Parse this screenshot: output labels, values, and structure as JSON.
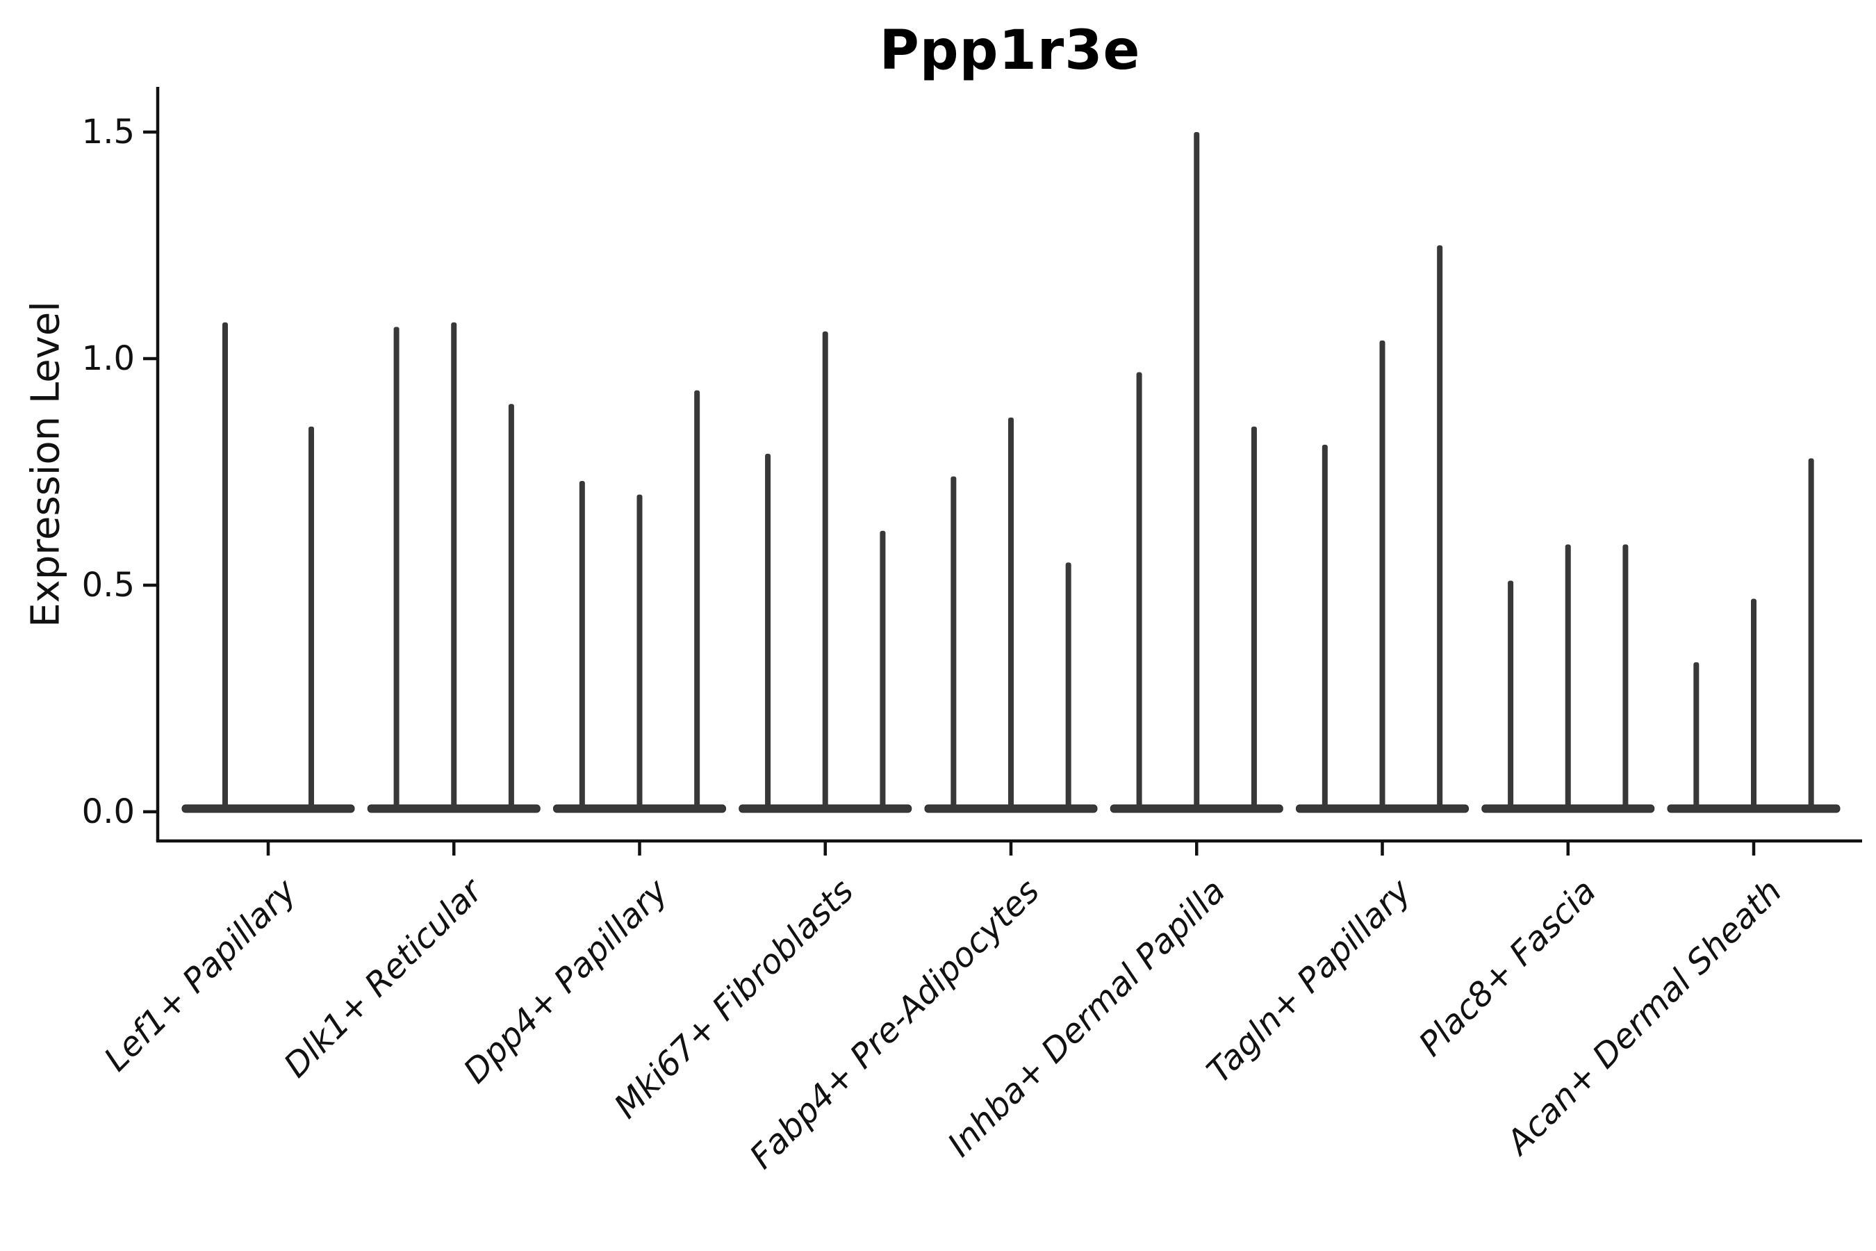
{
  "title": "Ppp1r3e",
  "chart_data": {
    "type": "violin",
    "title": "Ppp1r3e",
    "ylabel": "Expression Level",
    "xlabel": "",
    "yticks": [
      0.0,
      0.5,
      1.0,
      1.5
    ],
    "ytick_labels": [
      "0.0",
      "0.5",
      "1.0",
      "1.5"
    ],
    "ylim": [
      -0.06,
      1.6
    ],
    "grid": false,
    "legend": "none",
    "description": "Stacked-thin violin plot of Ppp1r3e expression; each category holds 2-3 near-zero violins whose expressing cells form thin spikes; spike tip values listed per violin",
    "categories": [
      "Lef1+ Papillary",
      "Dlk1+ Reticular",
      "Dpp4+ Papillary",
      "Mki67+ Fibroblasts",
      "Fabp4+ Pre-Adipocytes",
      "Inhba+ Dermal Papilla",
      "Tagln+ Papillary",
      "Plac8+ Fascia",
      "Acan+ Dermal Sheath"
    ],
    "groups": [
      {
        "category": "Lef1+ Papillary",
        "spike_heights": [
          1.08,
          0.85
        ]
      },
      {
        "category": "Dlk1+ Reticular",
        "spike_heights": [
          1.07,
          1.08,
          0.9
        ]
      },
      {
        "category": "Dpp4+ Papillary",
        "spike_heights": [
          0.73,
          0.7,
          0.93
        ]
      },
      {
        "category": "Mki67+ Fibroblasts",
        "spike_heights": [
          0.79,
          1.06,
          0.62
        ]
      },
      {
        "category": "Fabp4+ Pre-Adipocytes",
        "spike_heights": [
          0.74,
          0.87,
          0.55
        ]
      },
      {
        "category": "Inhba+ Dermal Papilla",
        "spike_heights": [
          0.97,
          1.5,
          0.85
        ]
      },
      {
        "category": "Tagln+ Papillary",
        "spike_heights": [
          0.81,
          1.04,
          1.25
        ]
      },
      {
        "category": "Plac8+ Fascia",
        "spike_heights": [
          0.51,
          0.59,
          0.59
        ]
      },
      {
        "category": "Acan+ Dermal Sheath",
        "spike_heights": [
          0.33,
          0.47,
          0.78
        ]
      }
    ],
    "style": {
      "violin_color": "#383838",
      "violin_edge_color": "#2a2a2a",
      "spine_color": "#111111",
      "text_color": "#111111",
      "background": "#ffffff"
    }
  }
}
